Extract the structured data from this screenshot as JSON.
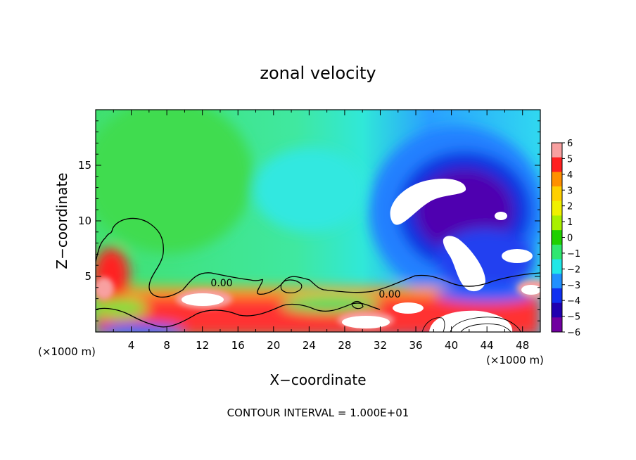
{
  "chart_data": {
    "type": "heatmap",
    "title": "zonal velocity",
    "xlabel": "X−coordinate",
    "ylabel": "Z−coordinate",
    "x_units_label": "(×1000 m)",
    "x_units_label_right": "(×1000 m)",
    "xlim": [
      0,
      50
    ],
    "ylim": [
      0,
      20
    ],
    "x_ticks": [
      "4",
      "8",
      "12",
      "16",
      "20",
      "24",
      "28",
      "32",
      "36",
      "40",
      "44",
      "48"
    ],
    "x_tick_values": [
      4,
      8,
      12,
      16,
      20,
      24,
      28,
      32,
      36,
      40,
      44,
      48
    ],
    "y_ticks": [
      "5",
      "10",
      "15"
    ],
    "y_tick_values": [
      5,
      10,
      15
    ],
    "colorbar": {
      "labels": [
        "6",
        "5",
        "4",
        "3",
        "2",
        "1",
        "0",
        "−1",
        "−2",
        "−3",
        "−4",
        "−5",
        "−6"
      ],
      "values": [
        6,
        5,
        4,
        3,
        2,
        1,
        0,
        -1,
        -2,
        -3,
        -4,
        -5,
        -6
      ],
      "colors": [
        "#f8a0a0",
        "#ff2020",
        "#ff9000",
        "#ffd000",
        "#f0f000",
        "#a8f000",
        "#20d000",
        "#30e870",
        "#20e8e8",
        "#2090ff",
        "#1030f0",
        "#2000b0",
        "#7000a0"
      ]
    },
    "contour_labels": [
      "0.00",
      "0.00"
    ],
    "footer": "CONTOUR INTERVAL = 1.000E+01",
    "field_features": [
      {
        "region": "upper left",
        "value": -0.5,
        "note": "weak flow, green"
      },
      {
        "region": "upper right core",
        "x": 42,
        "z": 12,
        "value": -6.5,
        "note": "strong negative jet, purple with white saturated core"
      },
      {
        "region": "near surface",
        "z": 1.5,
        "value": 5,
        "note": "positive flow, red with white saturated patches"
      },
      {
        "region": "left surface bulge",
        "x": 2,
        "z": 5,
        "value": 5.5
      }
    ]
  }
}
